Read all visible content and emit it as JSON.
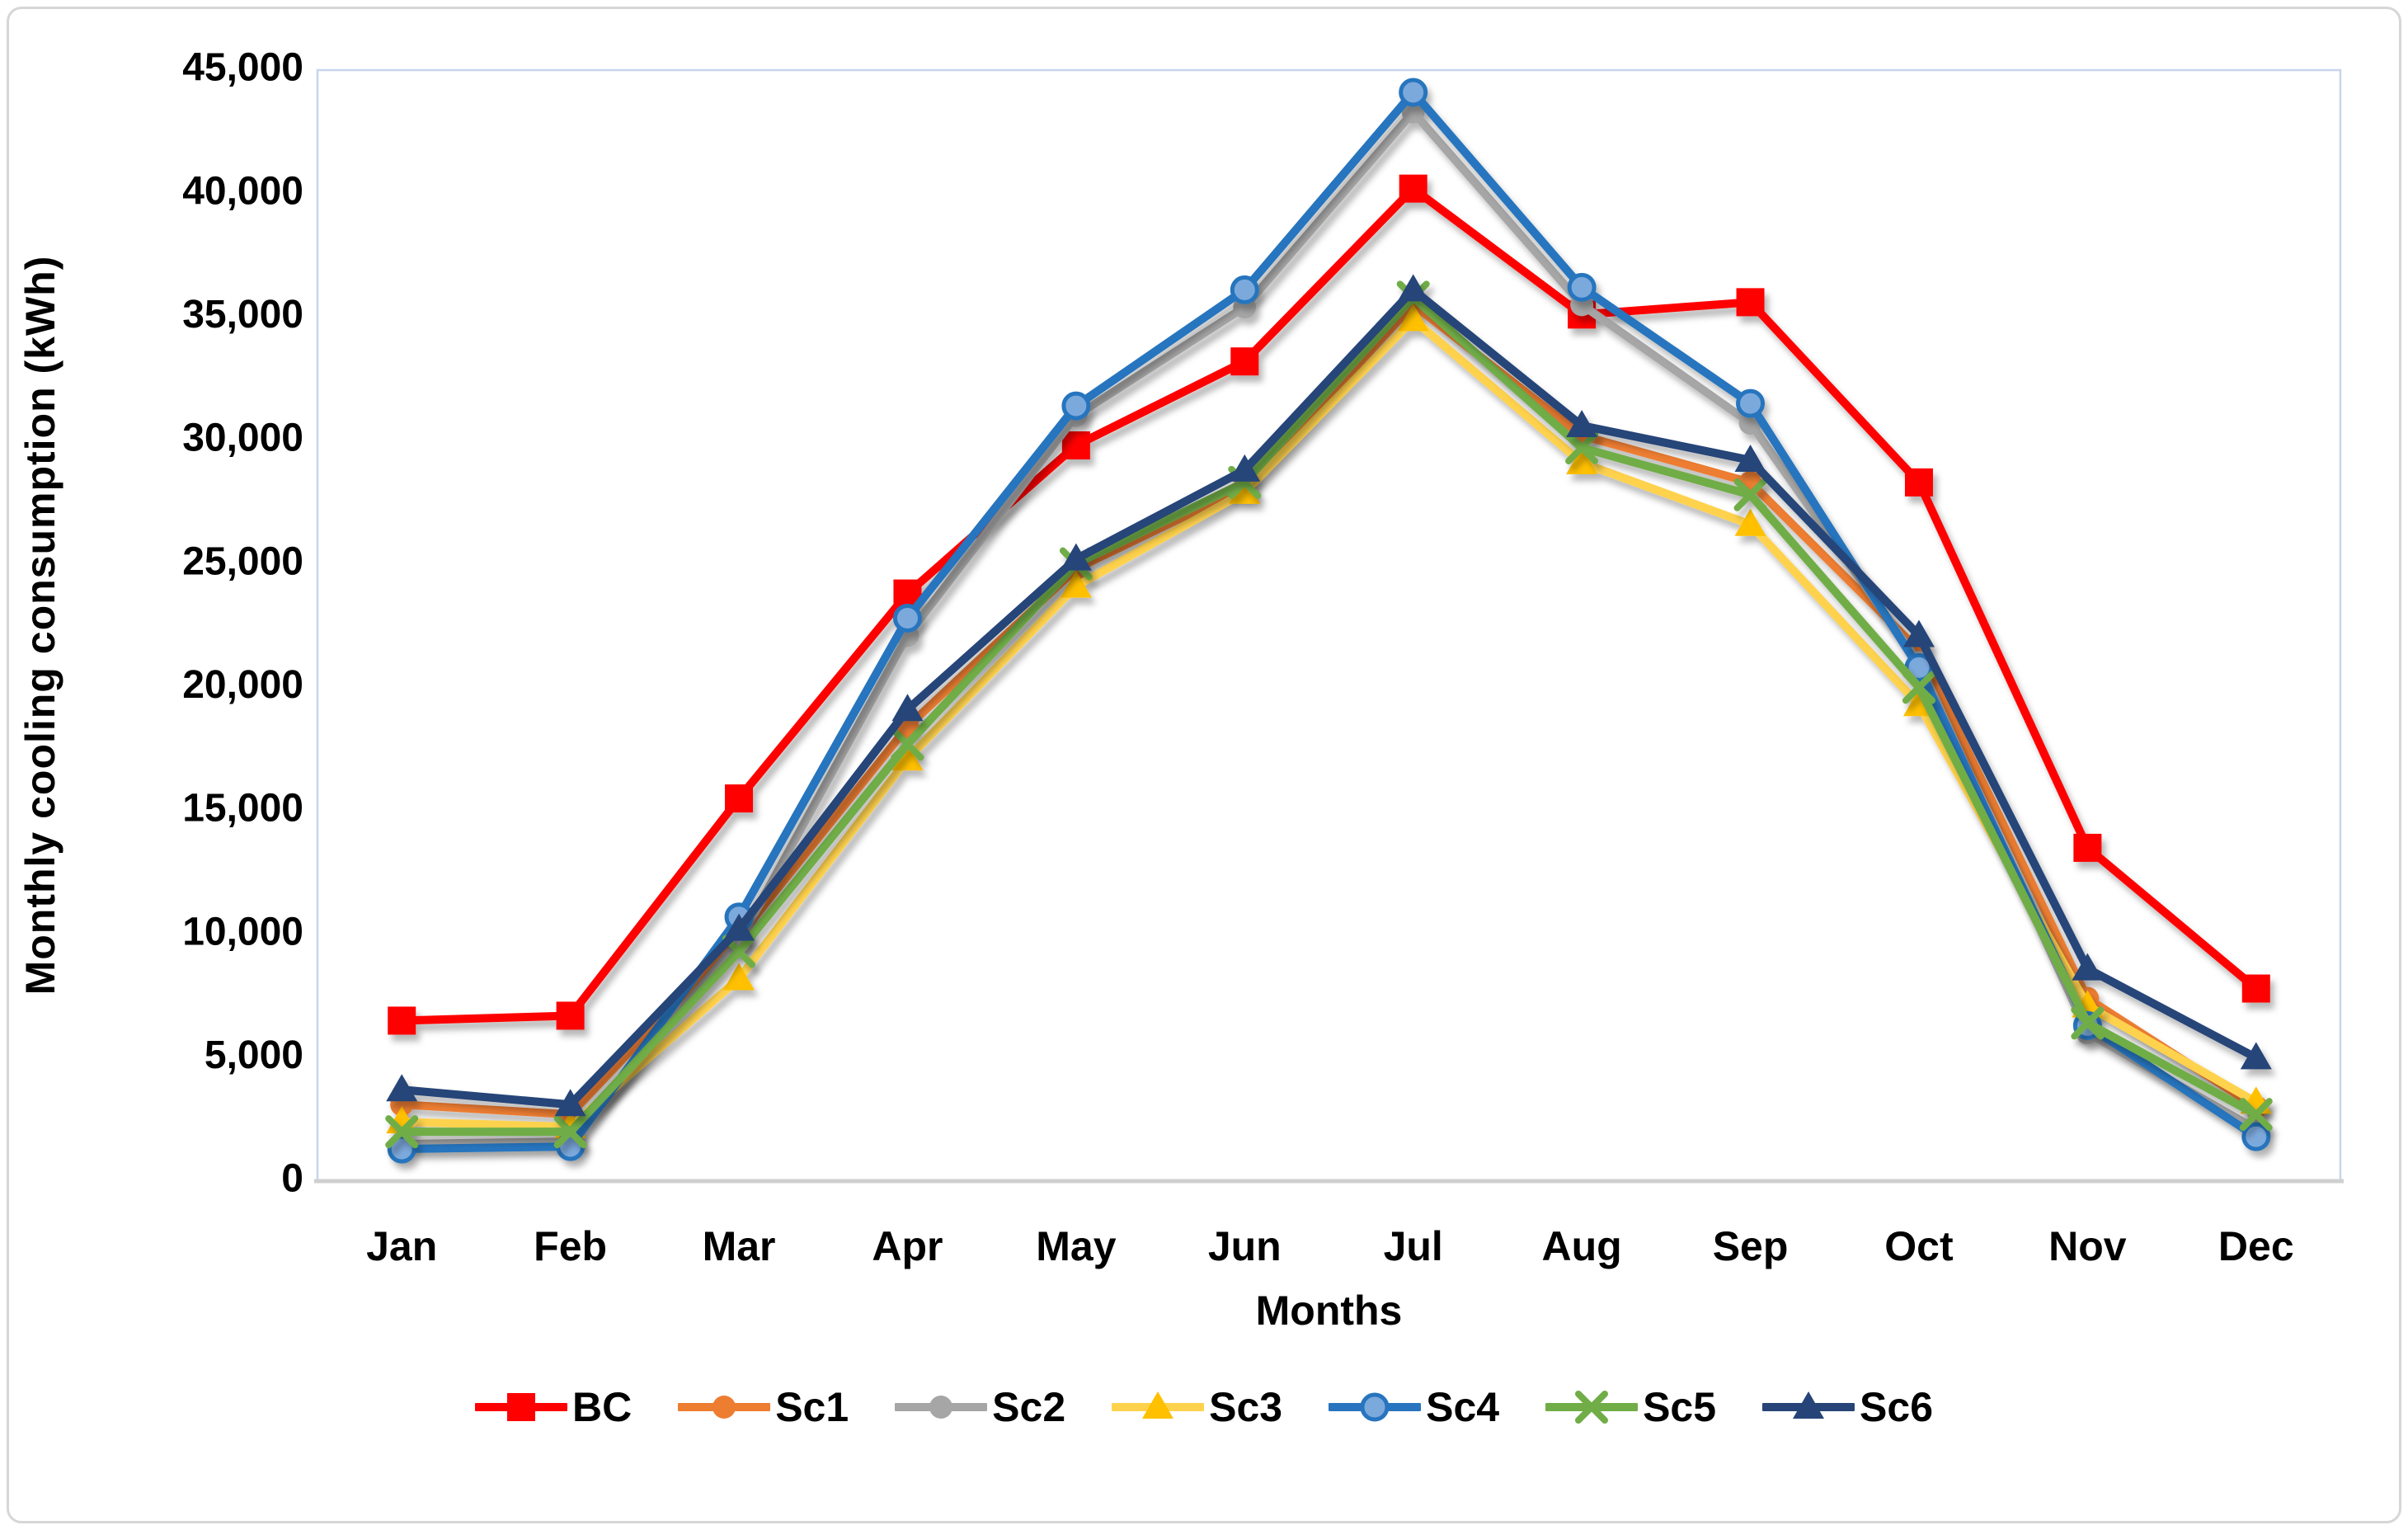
{
  "figure": {
    "type_label": "monthly-cooling-consumption-line-chart"
  },
  "chart_data": {
    "type": "line",
    "title": "",
    "xlabel": "Months",
    "ylabel": "Monthly cooling consumption (kWh)",
    "categories": [
      "Jan",
      "Feb",
      "Mar",
      "Apr",
      "May",
      "Jun",
      "Jul",
      "Aug",
      "Sep",
      "Oct",
      "Nov",
      "Dec"
    ],
    "ylim": [
      0,
      45000
    ],
    "y_tick_step": 5000,
    "y_tick_labels": [
      "0",
      "5,000",
      "10,000",
      "15,000",
      "20,000",
      "25,000",
      "30,000",
      "35,000",
      "40,000",
      "45,000"
    ],
    "grid": "off",
    "legend_position": "bottom",
    "series": [
      {
        "name": "BC",
        "color": "#FF0000",
        "marker": "square",
        "values": [
          6500,
          6700,
          15500,
          23800,
          29800,
          33200,
          40200,
          35100,
          35600,
          28300,
          13500,
          7800
        ]
      },
      {
        "name": "Sc1",
        "color": "#ED7D31",
        "marker": "circle",
        "values": [
          3100,
          2700,
          9900,
          18400,
          24800,
          28100,
          35500,
          30200,
          28300,
          21500,
          7400,
          3000
        ]
      },
      {
        "name": "Sc2",
        "color": "#A6A6A6",
        "marker": "circle",
        "values": [
          1500,
          1600,
          9700,
          22100,
          31000,
          35400,
          43300,
          35500,
          30700,
          21000,
          6000,
          2100
        ]
      },
      {
        "name": "Sc3",
        "color": "#FFC000",
        "line_color": "#FFD24D",
        "marker": "triangle",
        "values": [
          2400,
          2200,
          8200,
          17100,
          24100,
          27900,
          34900,
          29100,
          26600,
          19300,
          7100,
          3200
        ]
      },
      {
        "name": "Sc4",
        "color": "#2874BE",
        "marker": "circle-ring",
        "marker_fill": "#7CA9DC",
        "values": [
          1300,
          1400,
          10700,
          22800,
          31400,
          36100,
          44100,
          36200,
          31500,
          20800,
          6300,
          1800
        ]
      },
      {
        "name": "Sc5",
        "color": "#70AD47",
        "marker": "x",
        "values": [
          2000,
          2000,
          9300,
          17700,
          25000,
          28300,
          35800,
          29700,
          27800,
          20000,
          6400,
          2700
        ]
      },
      {
        "name": "Sc6",
        "color": "#264478",
        "marker": "triangle",
        "values": [
          3700,
          3100,
          10200,
          19100,
          25200,
          28800,
          36100,
          30600,
          29200,
          22100,
          8600,
          5000
        ]
      }
    ]
  }
}
